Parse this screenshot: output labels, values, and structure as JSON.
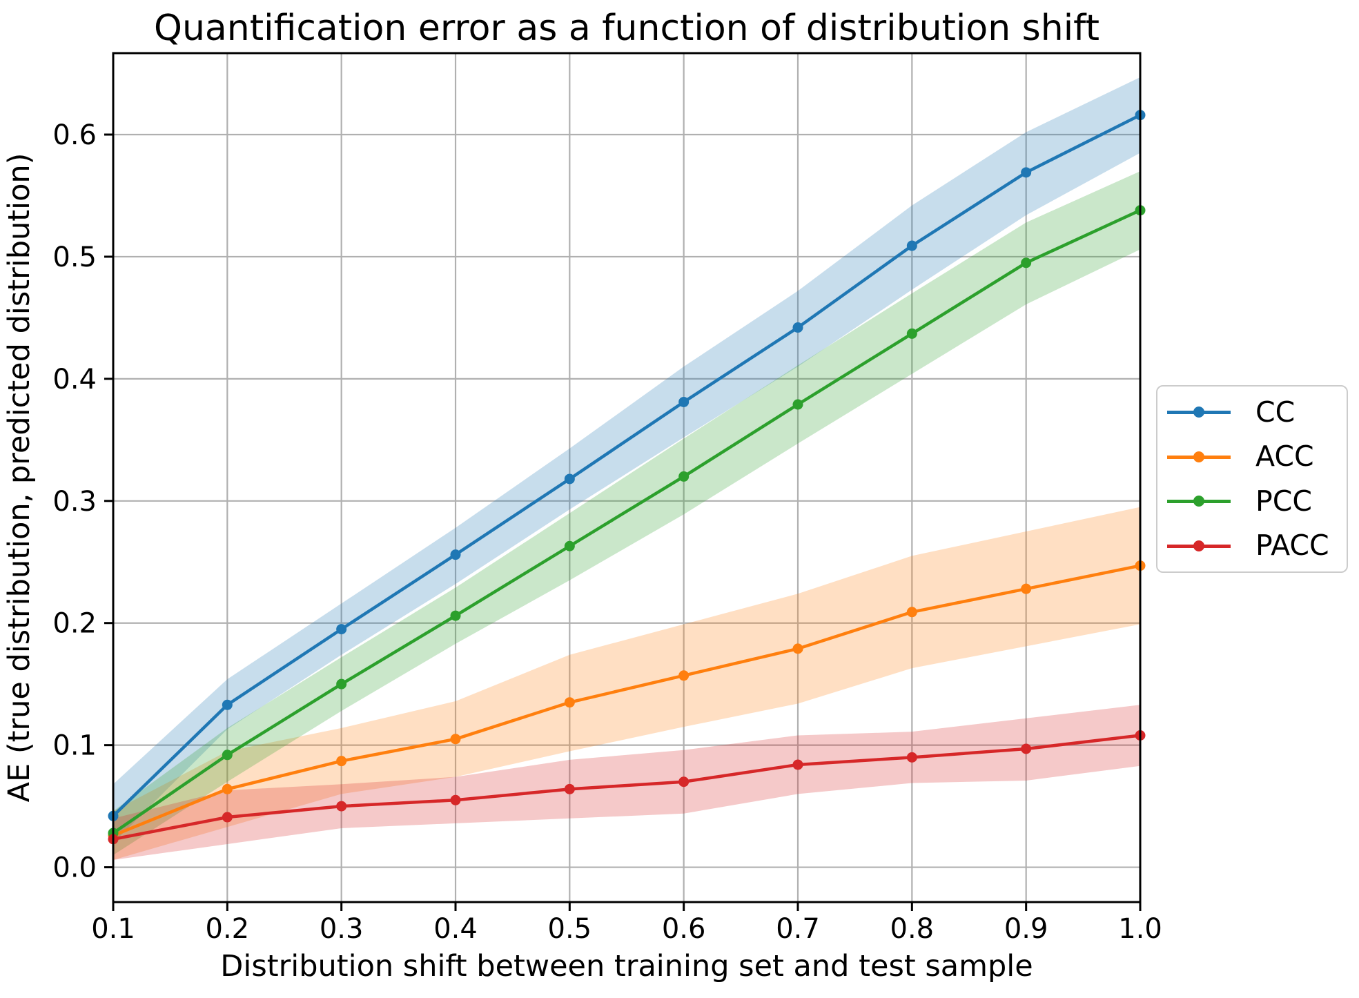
{
  "figure": {
    "title": "Quantification error as a function of distribution shift",
    "xlabel": "Distribution shift between training set and test sample",
    "ylabel": "AE (true distribution, predicted distribution)"
  },
  "chart_data": {
    "type": "line",
    "title": "Quantification error as a function of distribution shift",
    "xlabel": "Distribution shift between training set and test sample",
    "ylabel": "AE (true distribution, predicted distribution)",
    "x": [
      0.1,
      0.2,
      0.3,
      0.4,
      0.5,
      0.6,
      0.7,
      0.8,
      0.9,
      1.0
    ],
    "xlim": [
      0.1,
      1.0
    ],
    "ylim": [
      -0.0285,
      0.6667
    ],
    "xtick_labels": [
      "0.1",
      "0.2",
      "0.3",
      "0.4",
      "0.5",
      "0.6",
      "0.7",
      "0.8",
      "0.9",
      "1.0"
    ],
    "ytick_values": [
      0.0,
      0.1,
      0.2,
      0.3,
      0.4,
      0.5,
      0.6
    ],
    "ytick_labels": [
      "0.0",
      "0.1",
      "0.2",
      "0.3",
      "0.4",
      "0.5",
      "0.6"
    ],
    "grid": true,
    "grid_color": "#b0b0b0",
    "band_opacity": 0.25,
    "legend_position": "outside-right",
    "series": [
      {
        "name": "CC",
        "color": "#1f77b4",
        "values": [
          0.042,
          0.133,
          0.195,
          0.256,
          0.318,
          0.381,
          0.442,
          0.509,
          0.569,
          0.616
        ],
        "band_lower": [
          0.02,
          0.113,
          0.174,
          0.232,
          0.293,
          0.352,
          0.41,
          0.473,
          0.534,
          0.585
        ],
        "band_upper": [
          0.068,
          0.154,
          0.216,
          0.278,
          0.343,
          0.41,
          0.472,
          0.542,
          0.602,
          0.647
        ]
      },
      {
        "name": "ACC",
        "color": "#ff7f0e",
        "values": [
          0.026,
          0.064,
          0.087,
          0.105,
          0.135,
          0.157,
          0.179,
          0.209,
          0.228,
          0.247
        ],
        "band_lower": [
          0.006,
          0.033,
          0.06,
          0.074,
          0.095,
          0.115,
          0.134,
          0.163,
          0.181,
          0.199
        ],
        "band_upper": [
          0.046,
          0.095,
          0.114,
          0.136,
          0.174,
          0.199,
          0.224,
          0.255,
          0.275,
          0.295
        ]
      },
      {
        "name": "PCC",
        "color": "#2ca02c",
        "values": [
          0.028,
          0.092,
          0.15,
          0.206,
          0.263,
          0.32,
          0.379,
          0.437,
          0.495,
          0.538
        ],
        "band_lower": [
          0.01,
          0.07,
          0.128,
          0.183,
          0.235,
          0.289,
          0.347,
          0.404,
          0.461,
          0.506
        ],
        "band_upper": [
          0.046,
          0.114,
          0.172,
          0.229,
          0.29,
          0.351,
          0.411,
          0.47,
          0.528,
          0.57
        ]
      },
      {
        "name": "PACC",
        "color": "#d62728",
        "values": [
          0.023,
          0.041,
          0.05,
          0.055,
          0.064,
          0.07,
          0.084,
          0.09,
          0.097,
          0.108
        ],
        "band_lower": [
          0.006,
          0.019,
          0.032,
          0.036,
          0.04,
          0.044,
          0.06,
          0.069,
          0.071,
          0.083
        ],
        "band_upper": [
          0.04,
          0.063,
          0.068,
          0.074,
          0.088,
          0.096,
          0.108,
          0.111,
          0.122,
          0.133
        ]
      }
    ]
  }
}
